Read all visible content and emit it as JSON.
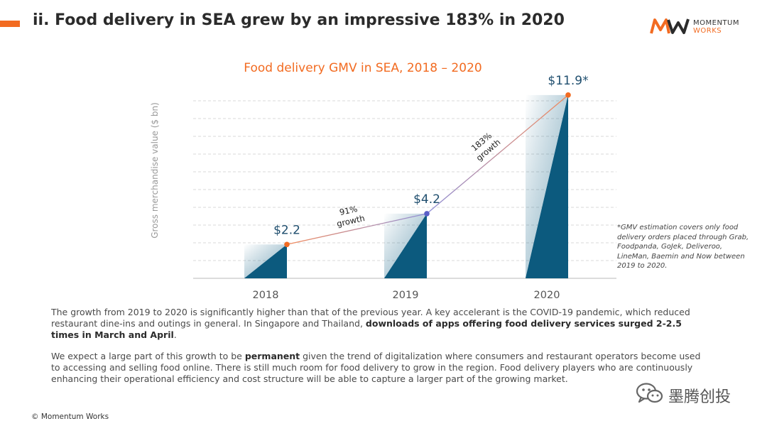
{
  "slide": {
    "title": "ii. Food delivery in SEA grew by an impressive 183% in 2020",
    "copyright": "© Momentum Works"
  },
  "logo": {
    "name": "MOMENTUM",
    "sub": "WORKS",
    "accent_color": "#f26b21"
  },
  "chart_data": {
    "type": "bar",
    "title": "Food delivery GMV in SEA, 2018 – 2020",
    "ylabel": "Gross merchandise value ($ bn)",
    "xlabel": "",
    "categories": [
      "2018",
      "2019",
      "2020"
    ],
    "values": [
      2.2,
      4.2,
      11.9
    ],
    "value_labels": [
      "$2.2",
      "$4.2",
      "$11.9*"
    ],
    "ylim": [
      0,
      13
    ],
    "grid": true,
    "growth_annotations": [
      {
        "from": "2018",
        "to": "2019",
        "pct_line": "91%",
        "word": "growth"
      },
      {
        "from": "2019",
        "to": "2020",
        "pct_line": "183%",
        "word": "growth"
      }
    ],
    "colors": {
      "bar": "#0c5a7e",
      "line_start": "#f28a5c",
      "line_mid": "#8e8fd8",
      "dot_start": "#f26b21",
      "dot_mid": "#5a5fc8",
      "title": "#f26b21",
      "label": "#1f4e6e"
    }
  },
  "footnote": "*GMV estimation covers only food delivery orders placed through Grab, Foodpanda, GoJek, Deliveroo, LineMan, Baemin and Now between 2019 to 2020.",
  "paragraph1": {
    "text_a": "The growth from 2019 to 2020 is significantly higher than that of the previous year. A key accelerant is the COVID-19 pandemic, which reduced restaurant dine-ins and outings in general. In Singapore and Thailand, ",
    "bold": "downloads of apps offering food delivery services surged 2-2.5 times in March and April",
    "text_b": "."
  },
  "paragraph2": {
    "text_a": "We expect a large part of this growth to be ",
    "bold": "permanent",
    "text_b": " given the trend of digitalization where consumers and restaurant operators become used to accessing and selling food online. There is still much room for food delivery to grow in the region. Food delivery players who are continuously enhancing their operational efficiency and cost structure will be able to capture a larger part of the growing market."
  },
  "watermark": {
    "text": "墨腾创投",
    "icon": "wechat-icon"
  }
}
